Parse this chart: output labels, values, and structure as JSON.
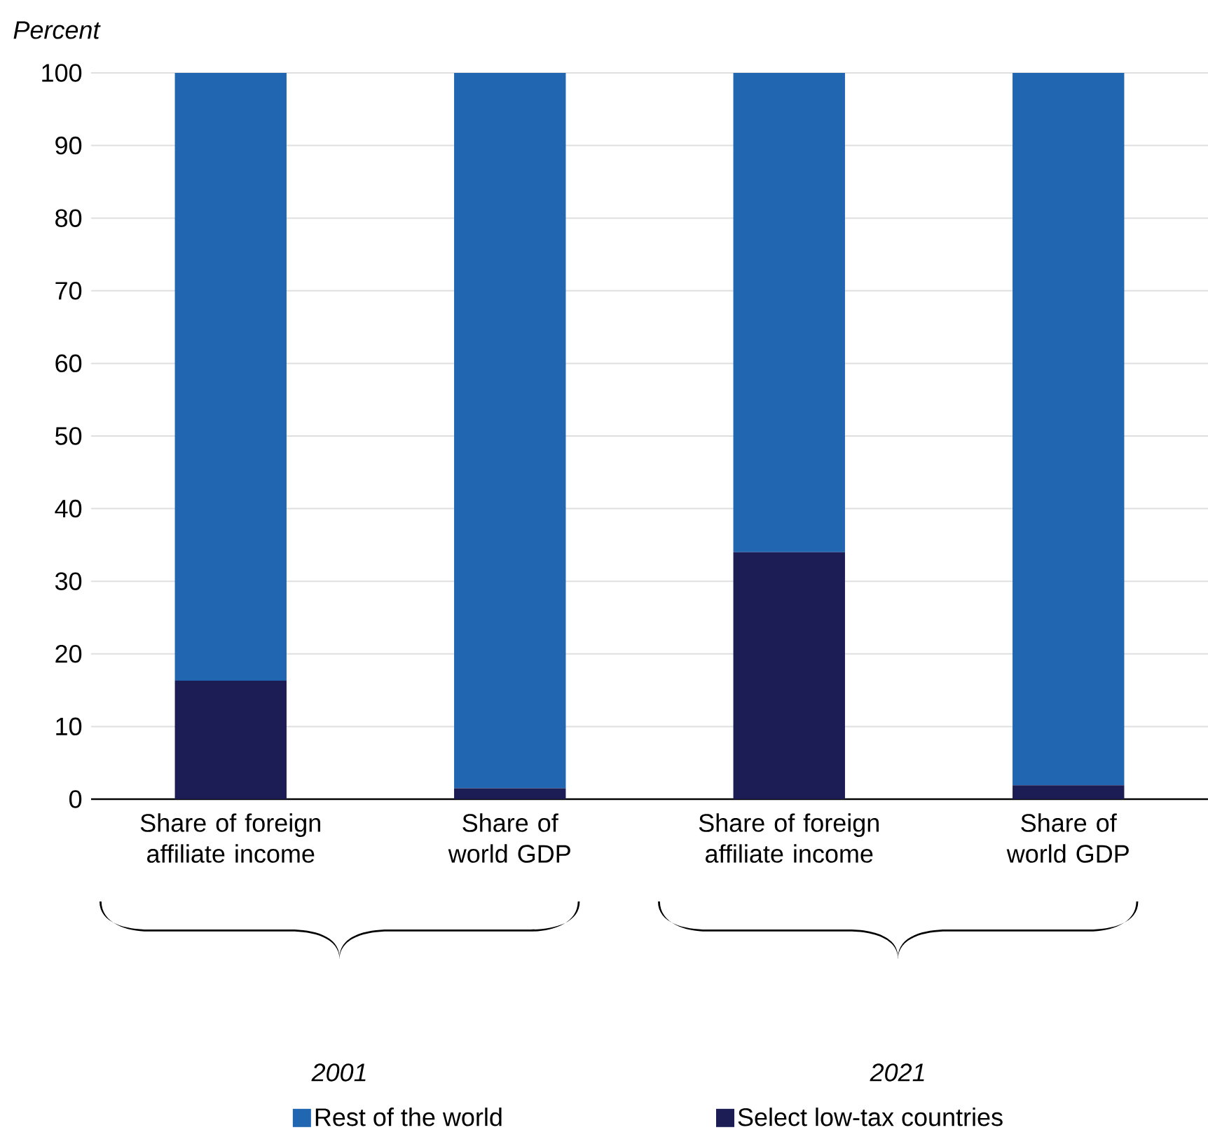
{
  "chart_data": {
    "type": "bar",
    "stacked": true,
    "ylabel": "Percent",
    "categories": [
      "Share of foreign affiliate income",
      "Share of world GDP",
      "Share of foreign affiliate income",
      "Share of world GDP"
    ],
    "series": [
      {
        "name": "Select low-tax countries",
        "color": "#1d1d55",
        "values": [
          16.3,
          1.5,
          34,
          1.9
        ]
      },
      {
        "name": "Rest of the world",
        "color": "#2166b1",
        "values": [
          83.7,
          98.5,
          66,
          98.1
        ]
      }
    ],
    "ylim": [
      0,
      100
    ],
    "yticks": [
      0,
      10,
      20,
      30,
      40,
      50,
      60,
      70,
      80,
      90,
      100
    ],
    "grid": "y",
    "legend": "bottom",
    "annotations": [
      "*2001*",
      "*2021*"
    ]
  }
}
